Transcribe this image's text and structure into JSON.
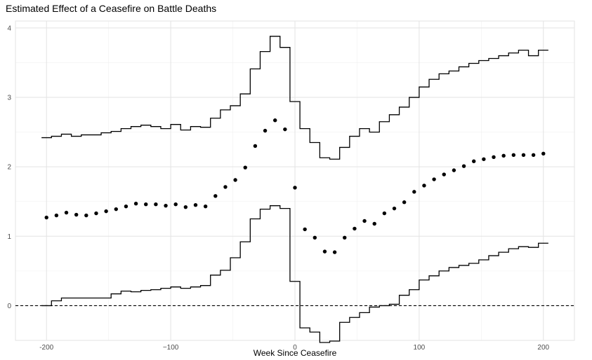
{
  "chart_data": {
    "type": "scatter",
    "title": "Estimated Effect of a Ceasefire on Battle Deaths",
    "xlabel": "Week Since Ceasefire",
    "ylabel": "",
    "xlim": [
      -225,
      225
    ],
    "ylim": [
      -0.5,
      4.1
    ],
    "x_ticks": [
      -200,
      -100,
      0,
      100,
      200
    ],
    "x_tick_labels": [
      "-200",
      "−100",
      "0",
      "100",
      "200"
    ],
    "y_ticks": [
      0,
      1,
      2,
      3,
      4
    ],
    "y_tick_labels": [
      "0",
      "1",
      "2",
      "3",
      "4"
    ],
    "grid": true,
    "reference_line": {
      "y": 0,
      "style": "dashed"
    },
    "series": [
      {
        "role": "point-estimate",
        "style": "points",
        "x": [
          -200,
          -192,
          -184,
          -176,
          -168,
          -160,
          -152,
          -144,
          -136,
          -128,
          -120,
          -112,
          -104,
          -96,
          -88,
          -80,
          -72,
          -64,
          -56,
          -48,
          -40,
          -32,
          -24,
          -16,
          -8,
          0,
          8,
          16,
          24,
          32,
          40,
          48,
          56,
          64,
          72,
          80,
          88,
          96,
          104,
          112,
          120,
          128,
          136,
          144,
          152,
          160,
          168,
          176,
          184,
          192,
          200
        ],
        "y": [
          1.27,
          1.3,
          1.34,
          1.31,
          1.3,
          1.33,
          1.36,
          1.39,
          1.43,
          1.47,
          1.46,
          1.46,
          1.44,
          1.46,
          1.42,
          1.45,
          1.43,
          1.58,
          1.71,
          1.81,
          1.99,
          2.3,
          2.52,
          2.67,
          2.54,
          1.7,
          1.1,
          0.98,
          0.78,
          0.77,
          0.98,
          1.11,
          1.22,
          1.18,
          1.33,
          1.4,
          1.49,
          1.64,
          1.73,
          1.82,
          1.89,
          1.95,
          2.01,
          2.08,
          2.11,
          2.14,
          2.16,
          2.17,
          2.17,
          2.17,
          2.19
        ]
      },
      {
        "role": "upper-bound",
        "style": "step",
        "x": [
          -204,
          -196,
          -188,
          -180,
          -172,
          -164,
          -156,
          -148,
          -140,
          -132,
          -124,
          -116,
          -108,
          -100,
          -92,
          -84,
          -76,
          -68,
          -60,
          -52,
          -44,
          -36,
          -28,
          -20,
          -12,
          -4,
          4,
          12,
          20,
          28,
          36,
          44,
          52,
          60,
          68,
          76,
          84,
          92,
          100,
          108,
          116,
          124,
          132,
          140,
          148,
          156,
          164,
          172,
          180,
          188,
          196
        ],
        "y": [
          2.42,
          2.44,
          2.47,
          2.44,
          2.46,
          2.46,
          2.49,
          2.51,
          2.55,
          2.58,
          2.6,
          2.58,
          2.55,
          2.61,
          2.53,
          2.58,
          2.57,
          2.7,
          2.82,
          2.88,
          3.05,
          3.41,
          3.66,
          3.88,
          3.72,
          2.94,
          2.55,
          2.35,
          2.13,
          2.11,
          2.28,
          2.44,
          2.55,
          2.5,
          2.65,
          2.75,
          2.86,
          3.0,
          3.15,
          3.26,
          3.34,
          3.38,
          3.44,
          3.49,
          3.53,
          3.56,
          3.6,
          3.64,
          3.68,
          3.6,
          3.68
        ]
      },
      {
        "role": "lower-bound",
        "style": "step",
        "x": [
          -204,
          -196,
          -188,
          -180,
          -172,
          -164,
          -156,
          -148,
          -140,
          -132,
          -124,
          -116,
          -108,
          -100,
          -92,
          -84,
          -76,
          -68,
          -60,
          -52,
          -44,
          -36,
          -28,
          -20,
          -12,
          -4,
          4,
          12,
          20,
          28,
          36,
          44,
          52,
          60,
          68,
          76,
          84,
          92,
          100,
          108,
          116,
          124,
          132,
          140,
          148,
          156,
          164,
          172,
          180,
          188,
          196
        ],
        "y": [
          0.0,
          0.07,
          0.11,
          0.11,
          0.11,
          0.11,
          0.11,
          0.17,
          0.21,
          0.2,
          0.22,
          0.23,
          0.25,
          0.27,
          0.25,
          0.27,
          0.29,
          0.44,
          0.51,
          0.69,
          0.92,
          1.25,
          1.39,
          1.44,
          1.4,
          0.35,
          -0.32,
          -0.38,
          -0.53,
          -0.51,
          -0.24,
          -0.17,
          -0.1,
          -0.02,
          0.0,
          0.02,
          0.15,
          0.23,
          0.37,
          0.43,
          0.5,
          0.55,
          0.58,
          0.61,
          0.66,
          0.72,
          0.77,
          0.82,
          0.85,
          0.84,
          0.9
        ]
      }
    ]
  }
}
